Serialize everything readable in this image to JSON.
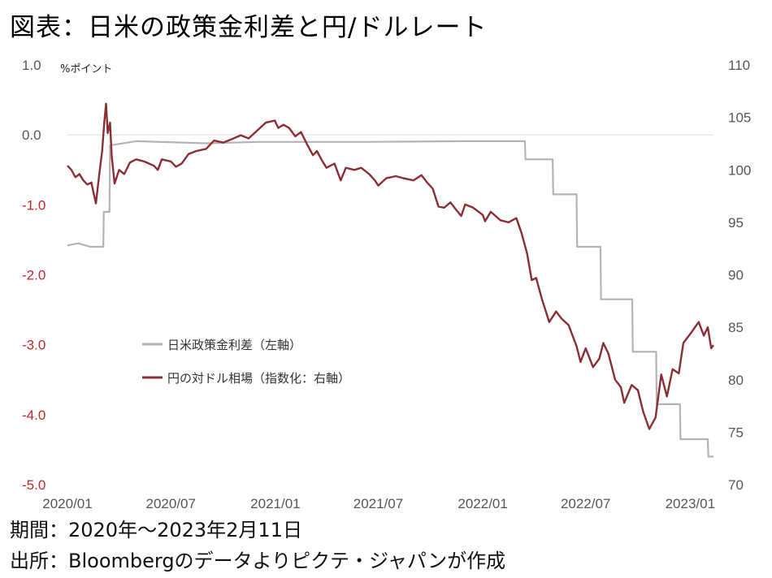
{
  "title": "図表：日米の政策金利差と円/ドルレート",
  "chart_data": {
    "type": "line",
    "left_unit": "%ポイント",
    "left_axis": {
      "ticks": [
        "1.0",
        "0.0",
        "-1.0",
        "-2.0",
        "-3.0",
        "-4.0",
        "-5.0"
      ],
      "ylim": [
        -5.0,
        1.0
      ],
      "color_positive": "#555555",
      "color_negative": "#c0282d"
    },
    "right_axis": {
      "ticks": [
        "110",
        "105",
        "100",
        "95",
        "90",
        "85",
        "80",
        "75",
        "70"
      ],
      "ylim": [
        70,
        110
      ]
    },
    "x_ticks": [
      "2020/01",
      "2020/07",
      "2021/01",
      "2021/07",
      "2022/01",
      "2022/07",
      "2023/01"
    ],
    "x_tick_dates": [
      "2020-01-01",
      "2020-07-01",
      "2021-01-01",
      "2021-07-01",
      "2022-01-01",
      "2022-07-01",
      "2023-01-01"
    ],
    "x_range": [
      "2020-01-01",
      "2023-02-11"
    ],
    "series": [
      {
        "name": "日米政策金利差（左軸）",
        "axis": "left",
        "color": "#b3b3b3",
        "step": true,
        "points": [
          [
            "2020-01-01",
            -1.58
          ],
          [
            "2020-01-20",
            -1.55
          ],
          [
            "2020-02-10",
            -1.6
          ],
          [
            "2020-03-04",
            -1.6
          ],
          [
            "2020-03-05",
            -1.1
          ],
          [
            "2020-03-15",
            -1.1
          ],
          [
            "2020-03-16",
            -0.15
          ],
          [
            "2020-05-01",
            -0.09
          ],
          [
            "2020-09-01",
            -0.12
          ],
          [
            "2020-12-01",
            -0.1
          ],
          [
            "2021-06-01",
            -0.1
          ],
          [
            "2021-12-01",
            -0.09
          ],
          [
            "2022-03-16",
            -0.09
          ],
          [
            "2022-03-17",
            -0.35
          ],
          [
            "2022-05-04",
            -0.35
          ],
          [
            "2022-05-05",
            -0.85
          ],
          [
            "2022-06-15",
            -0.85
          ],
          [
            "2022-06-16",
            -1.6
          ],
          [
            "2022-07-27",
            -1.6
          ],
          [
            "2022-07-28",
            -2.35
          ],
          [
            "2022-09-21",
            -2.35
          ],
          [
            "2022-09-22",
            -3.1
          ],
          [
            "2022-11-02",
            -3.1
          ],
          [
            "2022-11-03",
            -3.85
          ],
          [
            "2022-12-14",
            -3.85
          ],
          [
            "2022-12-15",
            -4.35
          ],
          [
            "2023-02-01",
            -4.35
          ],
          [
            "2023-02-02",
            -4.6
          ],
          [
            "2023-02-11",
            -4.6
          ]
        ]
      },
      {
        "name": "円の対ドル相場（指数化：右軸）",
        "axis": "right",
        "color": "#8b2e33",
        "step": false,
        "points": [
          [
            "2020-01-01",
            100.4
          ],
          [
            "2020-01-08",
            100.0
          ],
          [
            "2020-01-15",
            99.3
          ],
          [
            "2020-01-22",
            99.6
          ],
          [
            "2020-01-29",
            99.0
          ],
          [
            "2020-02-05",
            98.6
          ],
          [
            "2020-02-12",
            98.8
          ],
          [
            "2020-02-20",
            96.8
          ],
          [
            "2020-02-26",
            99.6
          ],
          [
            "2020-03-02",
            101.8
          ],
          [
            "2020-03-06",
            104.6
          ],
          [
            "2020-03-09",
            106.3
          ],
          [
            "2020-03-12",
            103.5
          ],
          [
            "2020-03-16",
            104.5
          ],
          [
            "2020-03-19",
            101.3
          ],
          [
            "2020-03-24",
            98.7
          ],
          [
            "2020-04-01",
            100.0
          ],
          [
            "2020-04-10",
            99.6
          ],
          [
            "2020-04-20",
            100.7
          ],
          [
            "2020-05-01",
            101.0
          ],
          [
            "2020-05-15",
            100.8
          ],
          [
            "2020-06-01",
            100.4
          ],
          [
            "2020-06-08",
            100.0
          ],
          [
            "2020-06-15",
            101.0
          ],
          [
            "2020-07-01",
            100.8
          ],
          [
            "2020-07-10",
            100.3
          ],
          [
            "2020-07-20",
            100.6
          ],
          [
            "2020-08-01",
            101.5
          ],
          [
            "2020-08-15",
            101.8
          ],
          [
            "2020-09-01",
            102.0
          ],
          [
            "2020-09-15",
            102.8
          ],
          [
            "2020-10-01",
            102.6
          ],
          [
            "2020-10-15",
            102.9
          ],
          [
            "2020-11-01",
            103.3
          ],
          [
            "2020-11-15",
            103.0
          ],
          [
            "2020-12-01",
            103.8
          ],
          [
            "2020-12-15",
            104.5
          ],
          [
            "2020-12-31",
            104.7
          ],
          [
            "2021-01-06",
            104.0
          ],
          [
            "2021-01-15",
            104.3
          ],
          [
            "2021-01-25",
            104.0
          ],
          [
            "2021-02-05",
            103.2
          ],
          [
            "2021-02-15",
            103.6
          ],
          [
            "2021-02-25",
            102.5
          ],
          [
            "2021-03-08",
            101.4
          ],
          [
            "2021-03-15",
            101.8
          ],
          [
            "2021-03-25",
            100.8
          ],
          [
            "2021-04-01",
            100.2
          ],
          [
            "2021-04-15",
            100.6
          ],
          [
            "2021-04-26",
            99.0
          ],
          [
            "2021-05-05",
            100.2
          ],
          [
            "2021-05-20",
            100.0
          ],
          [
            "2021-06-01",
            100.2
          ],
          [
            "2021-06-15",
            99.6
          ],
          [
            "2021-06-25",
            99.0
          ],
          [
            "2021-07-01",
            98.5
          ],
          [
            "2021-07-15",
            99.2
          ],
          [
            "2021-08-01",
            99.4
          ],
          [
            "2021-08-15",
            99.2
          ],
          [
            "2021-09-01",
            99.0
          ],
          [
            "2021-09-15",
            99.5
          ],
          [
            "2021-09-25",
            98.8
          ],
          [
            "2021-10-05",
            98.2
          ],
          [
            "2021-10-15",
            96.5
          ],
          [
            "2021-10-25",
            96.4
          ],
          [
            "2021-11-05",
            96.9
          ],
          [
            "2021-11-15",
            96.2
          ],
          [
            "2021-11-24",
            95.6
          ],
          [
            "2021-12-01",
            96.7
          ],
          [
            "2021-12-15",
            96.4
          ],
          [
            "2022-01-01",
            95.7
          ],
          [
            "2022-01-05",
            95.1
          ],
          [
            "2022-01-15",
            96.0
          ],
          [
            "2022-02-01",
            95.2
          ],
          [
            "2022-02-15",
            95.0
          ],
          [
            "2022-03-01",
            95.4
          ],
          [
            "2022-03-10",
            94.0
          ],
          [
            "2022-03-20",
            92.0
          ],
          [
            "2022-03-28",
            89.5
          ],
          [
            "2022-04-05",
            89.7
          ],
          [
            "2022-04-15",
            87.7
          ],
          [
            "2022-04-28",
            85.5
          ],
          [
            "2022-05-10",
            86.5
          ],
          [
            "2022-05-20",
            85.8
          ],
          [
            "2022-06-01",
            85.2
          ],
          [
            "2022-06-15",
            83.2
          ],
          [
            "2022-06-22",
            81.7
          ],
          [
            "2022-07-01",
            83.0
          ],
          [
            "2022-07-14",
            81.2
          ],
          [
            "2022-07-25",
            82.0
          ],
          [
            "2022-08-01",
            83.5
          ],
          [
            "2022-08-10",
            82.5
          ],
          [
            "2022-08-22",
            80.0
          ],
          [
            "2022-09-01",
            79.3
          ],
          [
            "2022-09-07",
            77.8
          ],
          [
            "2022-09-20",
            79.5
          ],
          [
            "2022-10-01",
            79.0
          ],
          [
            "2022-10-10",
            77.0
          ],
          [
            "2022-10-21",
            75.3
          ],
          [
            "2022-11-01",
            76.4
          ],
          [
            "2022-11-11",
            80.5
          ],
          [
            "2022-11-21",
            78.4
          ],
          [
            "2022-12-01",
            81.0
          ],
          [
            "2022-12-12",
            80.6
          ],
          [
            "2022-12-20",
            83.5
          ],
          [
            "2023-01-03",
            84.5
          ],
          [
            "2023-01-16",
            85.5
          ],
          [
            "2023-01-25",
            84.2
          ],
          [
            "2023-02-01",
            85.0
          ],
          [
            "2023-02-07",
            83.0
          ],
          [
            "2023-02-11",
            83.3
          ]
        ]
      }
    ]
  },
  "footer": {
    "period": "期間：2020年～2023年2月11日",
    "source": "出所：Bloombergのデータよりピクテ・ジャパンが作成"
  }
}
